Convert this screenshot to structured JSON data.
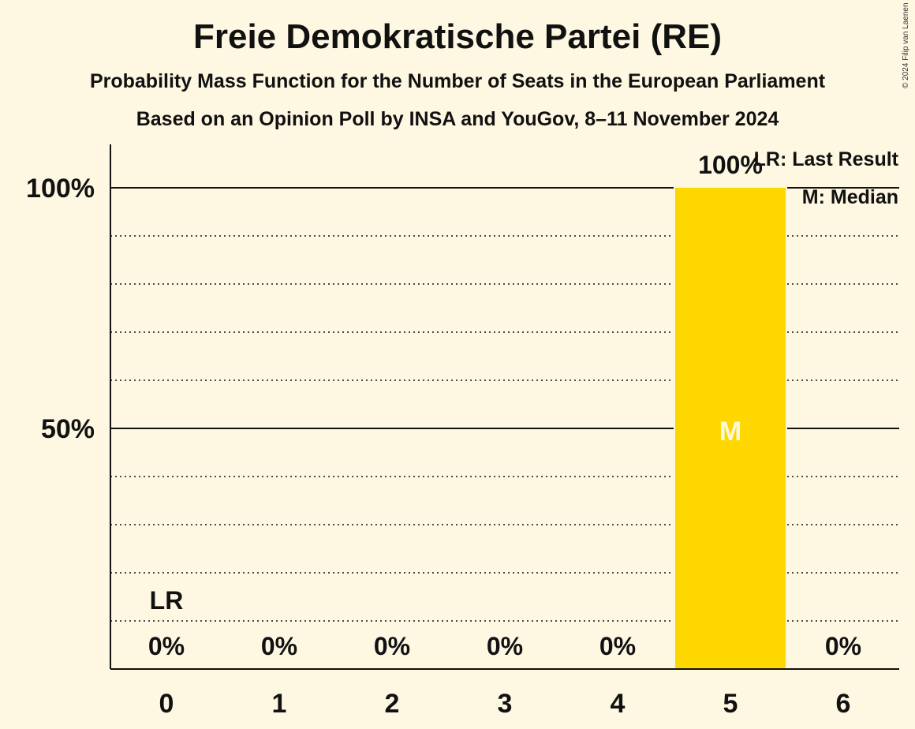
{
  "header": {
    "title": "Freie Demokratische Partei (RE)",
    "subtitle": "Probability Mass Function for the Number of Seats in the European Parliament",
    "subtitle2": "Based on an Opinion Poll by INSA and YouGov, 8–11 November 2024",
    "copyright": "© 2024 Filip van Laenen"
  },
  "colors": {
    "background": "#FEF8E2",
    "bar": "#FFD700",
    "median_label": "#FEF8E2",
    "text": "#111111"
  },
  "chart_data": {
    "type": "bar",
    "categories": [
      "0",
      "1",
      "2",
      "3",
      "4",
      "5",
      "6"
    ],
    "values": [
      0,
      0,
      0,
      0,
      0,
      100,
      0
    ],
    "value_labels": [
      "0%",
      "0%",
      "0%",
      "0%",
      "0%",
      "100%",
      "0%"
    ],
    "ylim": [
      0,
      110
    ],
    "yticks": [
      50,
      100
    ],
    "ytick_labels": [
      "50%",
      "100%"
    ],
    "minor_gridlines": [
      10,
      20,
      30,
      40,
      60,
      70,
      80,
      90
    ],
    "last_result": {
      "category": "0",
      "label": "LR"
    },
    "median": {
      "category": "5",
      "label": "M"
    },
    "legend": {
      "placement": "top-right",
      "entries": [
        "LR: Last Result",
        "M: Median"
      ]
    },
    "grid": true
  }
}
